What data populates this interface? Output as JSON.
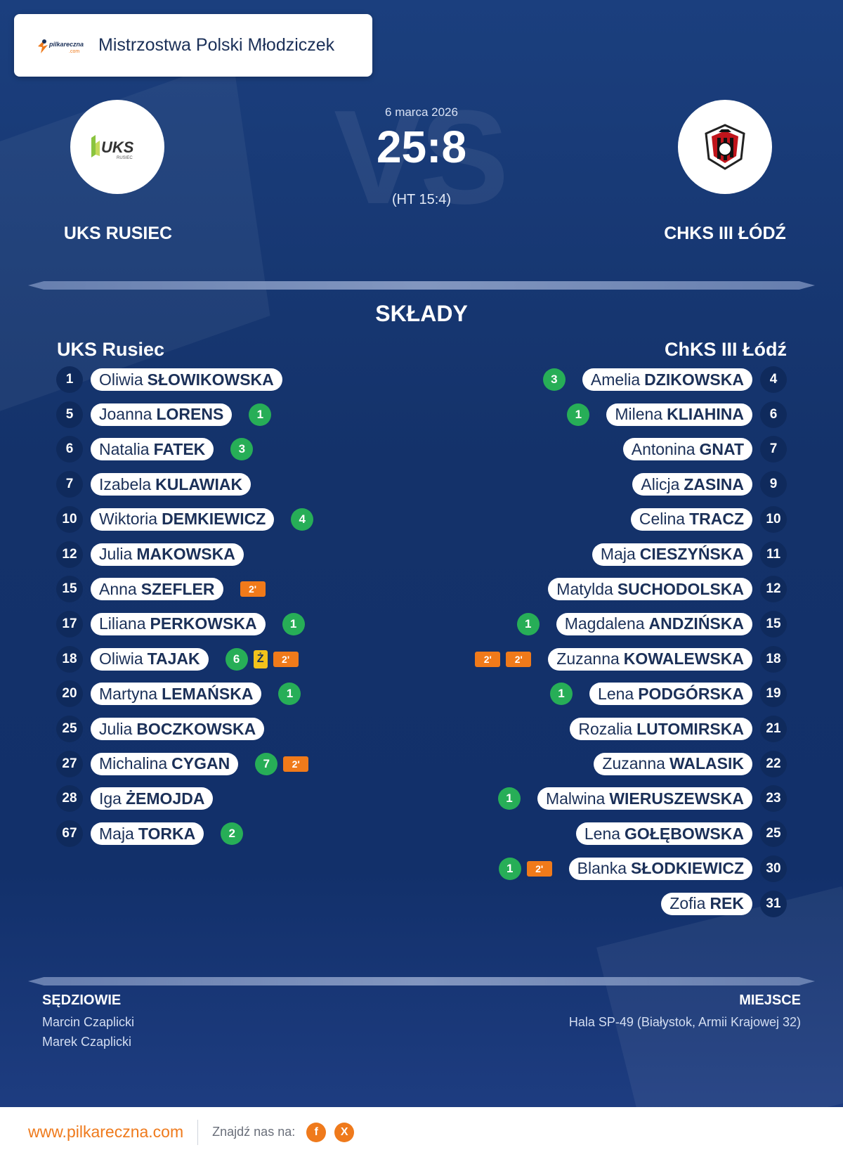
{
  "header": {
    "brand": "pilkareczna.com",
    "competition": "Mistrzostwa Polski Młodziczek"
  },
  "match": {
    "date": "6 marca 2026",
    "score": "25:8",
    "halftime": "(HT 15:4)",
    "vs_text": "VS"
  },
  "home": {
    "name_upper": "UKS RUSIEC",
    "name": "UKS Rusiec",
    "logo_text": "UKS",
    "logo_subtext": "RUSIEC",
    "players": [
      {
        "num": "1",
        "first": "Oliwia",
        "last": "SŁOWIKOWSKA",
        "events": []
      },
      {
        "num": "5",
        "first": "Joanna",
        "last": "LORENS",
        "events": [
          {
            "type": "goal",
            "text": "1"
          }
        ]
      },
      {
        "num": "6",
        "first": "Natalia",
        "last": "FATEK",
        "events": [
          {
            "type": "goal",
            "text": "3"
          }
        ]
      },
      {
        "num": "7",
        "first": "Izabela",
        "last": "KULAWIAK",
        "events": []
      },
      {
        "num": "10",
        "first": "Wiktoria",
        "last": "DEMKIEWICZ",
        "events": [
          {
            "type": "goal",
            "text": "4"
          }
        ]
      },
      {
        "num": "12",
        "first": "Julia",
        "last": "MAKOWSKA",
        "events": []
      },
      {
        "num": "15",
        "first": "Anna",
        "last": "SZEFLER",
        "events": [
          {
            "type": "pen",
            "text": "2'"
          }
        ]
      },
      {
        "num": "17",
        "first": "Liliana",
        "last": "PERKOWSKA",
        "events": [
          {
            "type": "goal",
            "text": "1"
          }
        ]
      },
      {
        "num": "18",
        "first": "Oliwia",
        "last": "TAJAK",
        "events": [
          {
            "type": "goal",
            "text": "6"
          },
          {
            "type": "yellow",
            "text": "Ż"
          },
          {
            "type": "pen",
            "text": "2'"
          }
        ]
      },
      {
        "num": "20",
        "first": "Martyna",
        "last": "LEMAŃSKA",
        "events": [
          {
            "type": "goal",
            "text": "1"
          }
        ]
      },
      {
        "num": "25",
        "first": "Julia",
        "last": "BOCZKOWSKA",
        "events": []
      },
      {
        "num": "27",
        "first": "Michalina",
        "last": "CYGAN",
        "events": [
          {
            "type": "goal",
            "text": "7"
          },
          {
            "type": "pen",
            "text": "2'"
          }
        ]
      },
      {
        "num": "28",
        "first": "Iga",
        "last": "ŻEMOJDA",
        "events": []
      },
      {
        "num": "67",
        "first": "Maja",
        "last": "TORKA",
        "events": [
          {
            "type": "goal",
            "text": "2"
          }
        ]
      }
    ]
  },
  "away": {
    "name_upper": "CHKS III ŁÓDŹ",
    "name": "ChKS III Łódź",
    "players": [
      {
        "num": "4",
        "first": "Amelia",
        "last": "DZIKOWSKA",
        "events": [
          {
            "type": "goal",
            "text": "3"
          }
        ]
      },
      {
        "num": "6",
        "first": "Milena",
        "last": "KLIAHINA",
        "events": [
          {
            "type": "goal",
            "text": "1"
          }
        ]
      },
      {
        "num": "7",
        "first": "Antonina",
        "last": "GNAT",
        "events": []
      },
      {
        "num": "9",
        "first": "Alicja",
        "last": "ZASINA",
        "events": []
      },
      {
        "num": "10",
        "first": "Celina",
        "last": "TRACZ",
        "events": []
      },
      {
        "num": "11",
        "first": "Maja",
        "last": "CIESZYŃSKA",
        "events": []
      },
      {
        "num": "12",
        "first": "Matylda",
        "last": "SUCHODOLSKA",
        "events": []
      },
      {
        "num": "15",
        "first": "Magdalena",
        "last": "ANDZIŃSKA",
        "events": [
          {
            "type": "goal",
            "text": "1"
          }
        ]
      },
      {
        "num": "18",
        "first": "Zuzanna",
        "last": "KOWALEWSKA",
        "events": [
          {
            "type": "pen",
            "text": "2'"
          },
          {
            "type": "pen",
            "text": "2'"
          }
        ]
      },
      {
        "num": "19",
        "first": "Lena",
        "last": "PODGÓRSKA",
        "events": [
          {
            "type": "goal",
            "text": "1"
          }
        ]
      },
      {
        "num": "21",
        "first": "Rozalia",
        "last": "LUTOMIRSKA",
        "events": []
      },
      {
        "num": "22",
        "first": "Zuzanna",
        "last": "WALASIK",
        "events": []
      },
      {
        "num": "23",
        "first": "Malwina",
        "last": "WIERUSZEWSKA",
        "events": [
          {
            "type": "goal",
            "text": "1"
          }
        ]
      },
      {
        "num": "25",
        "first": "Lena",
        "last": "GOŁĘBOWSKA",
        "events": []
      },
      {
        "num": "30",
        "first": "Blanka",
        "last": "SŁODKIEWICZ",
        "events": [
          {
            "type": "goal",
            "text": "1"
          },
          {
            "type": "pen",
            "text": "2'"
          }
        ]
      },
      {
        "num": "31",
        "first": "Zofia",
        "last": "REK",
        "events": []
      }
    ]
  },
  "lineups_title": "SKŁADY",
  "footer": {
    "referees_title": "SĘDZIOWIE",
    "referees": [
      "Marcin Czaplicki",
      "Marek Czaplicki"
    ],
    "venue_title": "MIEJSCE",
    "venue": "Hala SP-49 (Białystok, Armii Krajowej 32)"
  },
  "bottom": {
    "site": "www.pilkareczna.com",
    "find_us": "Znajdź nas na:",
    "social": [
      {
        "icon": "facebook-icon",
        "glyph": "f"
      },
      {
        "icon": "x-icon",
        "glyph": "X"
      }
    ]
  },
  "colors": {
    "background": "#14326a",
    "goal": "#27ae57",
    "penalty": "#f07a1a",
    "yellow": "#f3c21b",
    "accent": "#ef7a1c"
  }
}
